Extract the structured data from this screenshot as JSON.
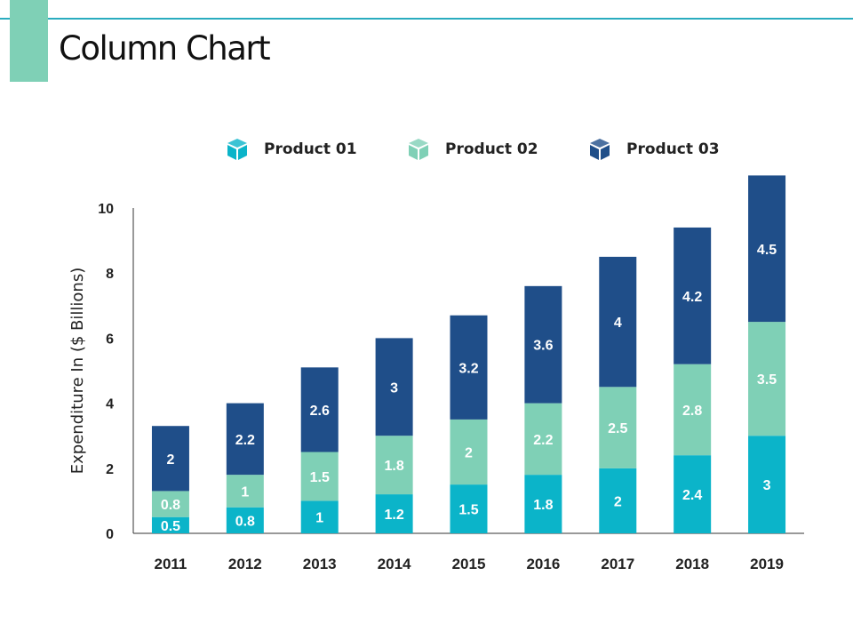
{
  "header": {
    "title": "Column Chart"
  },
  "chart_data": {
    "type": "bar",
    "stacked": true,
    "title": "",
    "xlabel": "",
    "ylabel": "Expenditure In ($ Billions)",
    "ylim": [
      0,
      10
    ],
    "yticks": [
      "0",
      "2",
      "4",
      "6",
      "8",
      "10"
    ],
    "grid": false,
    "legend_position": "top",
    "categories": [
      "2011",
      "2012",
      "2013",
      "2014",
      "2015",
      "2016",
      "2017",
      "2018",
      "2019"
    ],
    "series": [
      {
        "name": "Product 01",
        "color": "#0bb4c9",
        "icon": "box-icon",
        "values": [
          0.5,
          0.8,
          1,
          1.2,
          1.5,
          1.8,
          2,
          2.4,
          3
        ],
        "labels": [
          "0.5",
          "0.8",
          "1",
          "1.2",
          "1.5",
          "1.8",
          "2",
          "2.4",
          "3"
        ]
      },
      {
        "name": "Product 02",
        "color": "#7fd0b6",
        "icon": "box-icon",
        "values": [
          0.8,
          1,
          1.5,
          1.8,
          2,
          2.2,
          2.5,
          2.8,
          3.5
        ],
        "labels": [
          "0.8",
          "1",
          "1.5",
          "1.8",
          "2",
          "2.2",
          "2.5",
          "2.8",
          "3.5"
        ]
      },
      {
        "name": "Product 03",
        "color": "#1f4e89",
        "icon": "box-icon",
        "values": [
          2,
          2.2,
          2.6,
          3,
          3.2,
          3.6,
          4,
          4.2,
          4.5
        ],
        "labels": [
          "2",
          "2.2",
          "2.6",
          "3",
          "3.2",
          "3.6",
          "4",
          "4.2",
          "4.5"
        ]
      }
    ]
  }
}
